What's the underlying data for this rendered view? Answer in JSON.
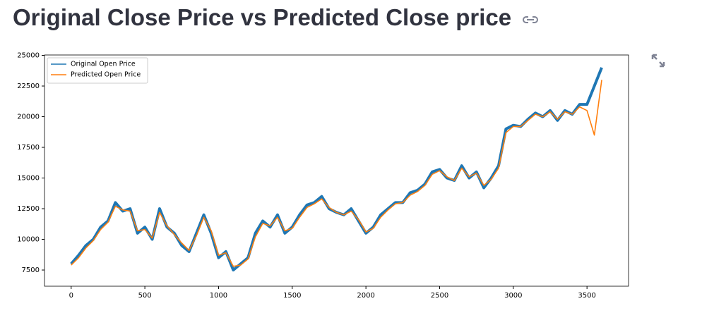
{
  "header": {
    "title": "Original Close Price vs Predicted Close price"
  },
  "chart_data": {
    "type": "line",
    "x": [
      0,
      50,
      100,
      150,
      200,
      250,
      300,
      350,
      400,
      450,
      500,
      550,
      600,
      650,
      700,
      750,
      800,
      850,
      900,
      950,
      1000,
      1050,
      1100,
      1150,
      1200,
      1250,
      1300,
      1350,
      1400,
      1450,
      1500,
      1550,
      1600,
      1650,
      1700,
      1750,
      1800,
      1850,
      1900,
      1950,
      2000,
      2050,
      2100,
      2150,
      2200,
      2250,
      2300,
      2350,
      2400,
      2450,
      2500,
      2550,
      2600,
      2650,
      2700,
      2750,
      2800,
      2850,
      2900,
      2950,
      3000,
      3050,
      3100,
      3150,
      3200,
      3250,
      3300,
      3350,
      3400,
      3450,
      3500,
      3550,
      3600
    ],
    "series": [
      {
        "name": "Original Open Price",
        "color": "#1f77b4",
        "values": [
          8000,
          8700,
          9500,
          10000,
          11000,
          11500,
          13000,
          12300,
          12500,
          10500,
          11000,
          10000,
          12500,
          11000,
          10500,
          9500,
          9000,
          10500,
          12000,
          10500,
          8500,
          9000,
          7500,
          8000,
          8500,
          10500,
          11500,
          11000,
          12000,
          10500,
          11000,
          12000,
          12800,
          13000,
          13500,
          12500,
          12200,
          12000,
          12500,
          11500,
          10500,
          11000,
          12000,
          12500,
          13000,
          13000,
          13800,
          14000,
          14500,
          15500,
          15700,
          15000,
          14800,
          16000,
          15000,
          15500,
          14200,
          15000,
          16000,
          19000,
          19300,
          19200,
          19800,
          20300,
          20000,
          20500,
          19700,
          20500,
          20200,
          21000,
          21000,
          22500,
          24000
        ]
      },
      {
        "name": "Predicted Open Price",
        "color": "#ff7f0e",
        "values": [
          7900,
          8500,
          9300,
          9900,
          10800,
          11400,
          12700,
          12400,
          12300,
          10700,
          10800,
          10100,
          12200,
          11100,
          10400,
          9700,
          9100,
          10300,
          11800,
          10700,
          8700,
          8900,
          7800,
          7900,
          8400,
          10200,
          11300,
          11100,
          11800,
          10700,
          10900,
          11800,
          12600,
          12900,
          13300,
          12600,
          12200,
          12000,
          12300,
          11600,
          10600,
          10900,
          11800,
          12400,
          12900,
          13000,
          13600,
          13900,
          14400,
          15300,
          15600,
          15100,
          14800,
          15800,
          15100,
          15400,
          14400,
          14900,
          15800,
          18700,
          19200,
          19200,
          19700,
          20200,
          20000,
          20400,
          19800,
          20400,
          20200,
          20800,
          20500,
          18500,
          23000
        ]
      }
    ],
    "xlim": [
      -181,
      3782
    ],
    "ylim": [
      6180,
      25030
    ],
    "xticks": [
      0,
      500,
      1000,
      1500,
      2000,
      2500,
      3000,
      3500
    ],
    "yticks": [
      7500,
      10000,
      12500,
      15000,
      17500,
      20000,
      22500,
      25000
    ],
    "legend": "upper left"
  }
}
